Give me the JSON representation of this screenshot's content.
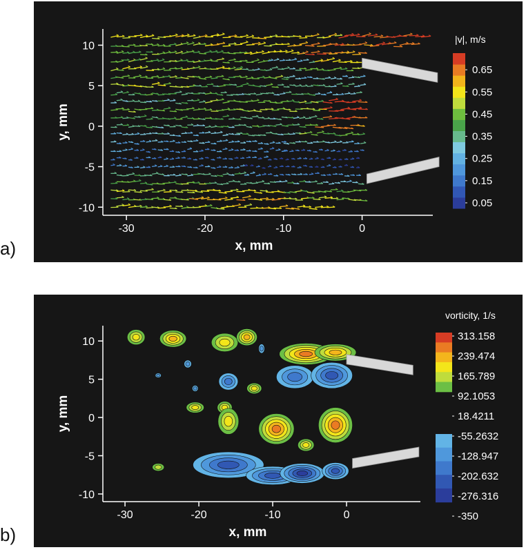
{
  "chart_data": [
    {
      "type": "quiver",
      "panel_label": "a)",
      "xlabel": "x, mm",
      "ylabel": "y, mm",
      "xlim": [
        -33,
        9
      ],
      "ylim": [
        -11,
        12
      ],
      "xticks": [
        "-30",
        "-20",
        "-10",
        "0"
      ],
      "yticks": [
        "10",
        "5",
        "0",
        "-5",
        "-10"
      ],
      "colorbar": {
        "title": "|v|, m/s",
        "tick_labels": [
          "0.65",
          "0.55",
          "0.45",
          "0.35",
          "0.25",
          "0.15",
          "0.05"
        ],
        "levels": [
          0.05,
          0.1,
          0.15,
          0.2,
          0.25,
          0.3,
          0.35,
          0.4,
          0.45,
          0.5,
          0.55,
          0.6,
          0.65,
          0.7
        ],
        "colors": [
          "#2b3d9b",
          "#3157b5",
          "#3f79cc",
          "#4f97dc",
          "#62b1e2",
          "#7fcae0",
          "#67b98d",
          "#4aa34a",
          "#6ebd3e",
          "#bfdc3c",
          "#f2e51a",
          "#f2b41b",
          "#e87b23",
          "#d63c24"
        ]
      },
      "field_description_speed_rows": [
        {
          "y": 11,
          "segments": [
            {
              "x0": -32,
              "x1": -3,
              "v": 0.55
            },
            {
              "x0": -3,
              "x1": 8,
              "v": 0.7
            }
          ]
        },
        {
          "y": 10,
          "segments": [
            {
              "x0": -32,
              "x1": -20,
              "v": 0.45
            },
            {
              "x0": -20,
              "x1": -8,
              "v": 0.55
            },
            {
              "x0": -8,
              "x1": 7,
              "v": 0.65
            }
          ]
        },
        {
          "y": 9,
          "segments": [
            {
              "x0": -32,
              "x1": -15,
              "v": 0.45
            },
            {
              "x0": -15,
              "x1": -8,
              "v": 0.55
            },
            {
              "x0": -8,
              "x1": 0,
              "v": 0.65
            }
          ]
        },
        {
          "y": 8,
          "segments": [
            {
              "x0": -32,
              "x1": -12,
              "v": 0.45
            },
            {
              "x0": -12,
              "x1": -6,
              "v": 0.3
            },
            {
              "x0": -6,
              "x1": 0,
              "v": 0.55
            }
          ]
        },
        {
          "y": 7,
          "segments": [
            {
              "x0": -32,
              "x1": -16,
              "v": 0.5
            },
            {
              "x0": -16,
              "x1": -8,
              "v": 0.35
            },
            {
              "x0": -8,
              "x1": 0,
              "v": 0.45
            }
          ]
        },
        {
          "y": 6,
          "segments": [
            {
              "x0": -32,
              "x1": -10,
              "v": 0.45
            },
            {
              "x0": -10,
              "x1": 0,
              "v": 0.3
            }
          ]
        },
        {
          "y": 5,
          "segments": [
            {
              "x0": -32,
              "x1": -22,
              "v": 0.5
            },
            {
              "x0": -22,
              "x1": -10,
              "v": 0.4
            },
            {
              "x0": -10,
              "x1": 0,
              "v": 0.35
            }
          ]
        },
        {
          "y": 4,
          "segments": [
            {
              "x0": -32,
              "x1": -18,
              "v": 0.4
            },
            {
              "x0": -18,
              "x1": -6,
              "v": 0.35
            },
            {
              "x0": -6,
              "x1": 0,
              "v": 0.3
            }
          ]
        },
        {
          "y": 3,
          "segments": [
            {
              "x0": -32,
              "x1": -20,
              "v": 0.35
            },
            {
              "x0": -20,
              "x1": -5,
              "v": 0.45
            },
            {
              "x0": -5,
              "x1": 0,
              "v": 0.7
            }
          ]
        },
        {
          "y": 2,
          "segments": [
            {
              "x0": -32,
              "x1": -16,
              "v": 0.45
            },
            {
              "x0": -16,
              "x1": -5,
              "v": 0.5
            },
            {
              "x0": -5,
              "x1": 0,
              "v": 0.7
            }
          ]
        },
        {
          "y": 1,
          "segments": [
            {
              "x0": -32,
              "x1": -14,
              "v": 0.4
            },
            {
              "x0": -14,
              "x1": -5,
              "v": 0.35
            },
            {
              "x0": -5,
              "x1": 0,
              "v": 0.7
            }
          ]
        },
        {
          "y": 0,
          "segments": [
            {
              "x0": -32,
              "x1": -14,
              "v": 0.35
            },
            {
              "x0": -14,
              "x1": -6,
              "v": 0.4
            },
            {
              "x0": -6,
              "x1": 0,
              "v": 0.65
            }
          ]
        },
        {
          "y": -1,
          "segments": [
            {
              "x0": -32,
              "x1": -16,
              "v": 0.3
            },
            {
              "x0": -16,
              "x1": -8,
              "v": 0.35
            },
            {
              "x0": -8,
              "x1": 0,
              "v": 0.45
            }
          ]
        },
        {
          "y": -2,
          "segments": [
            {
              "x0": -32,
              "x1": -10,
              "v": 0.25
            },
            {
              "x0": -10,
              "x1": 0,
              "v": 0.3
            }
          ]
        },
        {
          "y": -3,
          "segments": [
            {
              "x0": -32,
              "x1": -10,
              "v": 0.2
            },
            {
              "x0": -10,
              "x1": 0,
              "v": 0.15
            }
          ]
        },
        {
          "y": -4,
          "segments": [
            {
              "x0": -32,
              "x1": -12,
              "v": 0.15
            },
            {
              "x0": -12,
              "x1": 0,
              "v": 0.1
            }
          ]
        },
        {
          "y": -5,
          "segments": [
            {
              "x0": -32,
              "x1": -15,
              "v": 0.2
            },
            {
              "x0": -15,
              "x1": 0,
              "v": 0.1
            }
          ]
        },
        {
          "y": -6,
          "segments": [
            {
              "x0": -32,
              "x1": -15,
              "v": 0.35
            },
            {
              "x0": -15,
              "x1": 0,
              "v": 0.2
            }
          ]
        },
        {
          "y": -7,
          "segments": [
            {
              "x0": -32,
              "x1": -20,
              "v": 0.45
            },
            {
              "x0": -20,
              "x1": -5,
              "v": 0.35
            },
            {
              "x0": -5,
              "x1": 0,
              "v": 0.3
            }
          ]
        },
        {
          "y": -8,
          "segments": [
            {
              "x0": -32,
              "x1": -22,
              "v": 0.5
            },
            {
              "x0": -22,
              "x1": -10,
              "v": 0.55
            },
            {
              "x0": -10,
              "x1": 0,
              "v": 0.45
            }
          ]
        },
        {
          "y": -9,
          "segments": [
            {
              "x0": -32,
              "x1": -22,
              "v": 0.45
            },
            {
              "x0": -22,
              "x1": -10,
              "v": 0.6
            },
            {
              "x0": -10,
              "x1": 0,
              "v": 0.5
            }
          ]
        },
        {
          "y": -10,
          "segments": [
            {
              "x0": -32,
              "x1": -18,
              "v": 0.5
            },
            {
              "x0": -18,
              "x1": -4,
              "v": 0.55
            }
          ]
        }
      ],
      "plates": [
        {
          "x0": 0.0,
          "y0": 7.8,
          "x1": 9.6,
          "y1": 6.0
        },
        {
          "x0": 0.6,
          "y0": -6.5,
          "x1": 9.8,
          "y1": -4.4
        }
      ]
    },
    {
      "type": "contour",
      "panel_label": "b)",
      "xlabel": "x, mm",
      "ylabel": "y, mm",
      "xlim": [
        -33,
        10
      ],
      "ylim": [
        -11,
        12
      ],
      "xticks": [
        "-30",
        "-20",
        "-10",
        "0"
      ],
      "yticks": [
        "10",
        "5",
        "0",
        "-5",
        "-10"
      ],
      "colorbar": {
        "title": "vorticity, 1/s",
        "tick_labels": [
          "313.158",
          "239.474",
          "165.789",
          "92.1053",
          "18.4211",
          "-55.2632",
          "-128.947",
          "-202.632",
          "-276.316",
          "-350"
        ],
        "positive_colors": [
          "#6cbf45",
          "#bfdc3c",
          "#f3e51a",
          "#f4b51c",
          "#ea7b23",
          "#d63c24"
        ],
        "negative_colors": [
          "#2b3d9b",
          "#3158b3",
          "#3f79cc",
          "#4f98dc",
          "#62b4e6"
        ]
      },
      "vortices": [
        {
          "x": -28.5,
          "y": 10.5,
          "rx": 1.2,
          "ry": 1.0,
          "value": 165.789
        },
        {
          "x": -23.5,
          "y": 10.3,
          "rx": 1.8,
          "ry": 1.1,
          "value": 239.474
        },
        {
          "x": -16.5,
          "y": 9.8,
          "rx": 1.8,
          "ry": 1.2,
          "value": 165.789
        },
        {
          "x": -13.5,
          "y": 10.5,
          "rx": 1.4,
          "ry": 1.1,
          "value": 239.474
        },
        {
          "x": -11.5,
          "y": 9.0,
          "rx": 0.4,
          "ry": 0.6,
          "value": -128.947
        },
        {
          "x": -5.5,
          "y": 8.3,
          "rx": 3.6,
          "ry": 1.4,
          "value": 313.158
        },
        {
          "x": -1.5,
          "y": 8.5,
          "rx": 2.8,
          "ry": 1.1,
          "value": 239.474
        },
        {
          "x": -21.5,
          "y": 7.0,
          "rx": 0.5,
          "ry": 0.5,
          "value": -128.947
        },
        {
          "x": -25.5,
          "y": 5.5,
          "rx": 0.4,
          "ry": 0.3,
          "value": -128.947
        },
        {
          "x": -7.0,
          "y": 5.3,
          "rx": 2.5,
          "ry": 1.5,
          "value": -202.632
        },
        {
          "x": -2.0,
          "y": 5.5,
          "rx": 2.8,
          "ry": 1.7,
          "value": -276.316
        },
        {
          "x": -16.0,
          "y": 4.7,
          "rx": 1.3,
          "ry": 1.1,
          "value": -202.632
        },
        {
          "x": -12.5,
          "y": 3.8,
          "rx": 1.0,
          "ry": 0.7,
          "value": 165.789
        },
        {
          "x": -20.5,
          "y": 3.8,
          "rx": 0.4,
          "ry": 0.4,
          "value": -128.947
        },
        {
          "x": -20.5,
          "y": 1.3,
          "rx": 1.2,
          "ry": 0.7,
          "value": 165.789
        },
        {
          "x": -16.5,
          "y": 1.3,
          "rx": 1.0,
          "ry": 0.8,
          "value": 165.789
        },
        {
          "x": -16.0,
          "y": -0.5,
          "rx": 1.4,
          "ry": 1.7,
          "value": 165.789
        },
        {
          "x": -9.5,
          "y": -1.5,
          "rx": 2.4,
          "ry": 2.0,
          "value": 313.158
        },
        {
          "x": -1.5,
          "y": -1.0,
          "rx": 2.3,
          "ry": 2.3,
          "value": 313.158
        },
        {
          "x": -5.5,
          "y": -3.6,
          "rx": 1.1,
          "ry": 0.8,
          "value": 165.789
        },
        {
          "x": -25.5,
          "y": -6.5,
          "rx": 0.8,
          "ry": 0.5,
          "value": 92.1053
        },
        {
          "x": -16.0,
          "y": -6.2,
          "rx": 4.8,
          "ry": 1.7,
          "value": -276.316
        },
        {
          "x": -10.0,
          "y": -7.6,
          "rx": 3.6,
          "ry": 1.2,
          "value": -276.316
        },
        {
          "x": -6.0,
          "y": -7.3,
          "rx": 3.0,
          "ry": 1.3,
          "value": -350
        },
        {
          "x": -1.5,
          "y": -7.0,
          "rx": 1.8,
          "ry": 1.1,
          "value": -276.316
        }
      ],
      "plates": [
        {
          "x0": 0.0,
          "y0": 7.6,
          "x1": 9.0,
          "y1": 6.2
        },
        {
          "x0": 0.8,
          "y0": -6.0,
          "x1": 9.8,
          "y1": -4.5
        }
      ]
    }
  ]
}
